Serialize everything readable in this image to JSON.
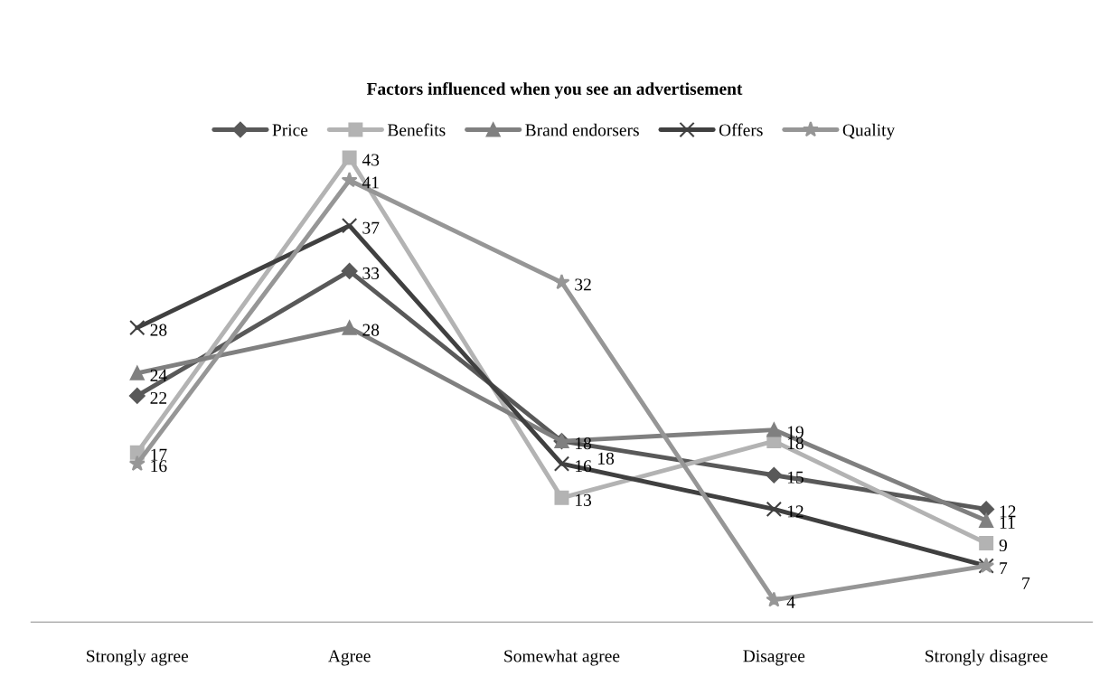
{
  "chart_data": {
    "type": "line",
    "title": "Factors influenced when you see an advertisement",
    "categories": [
      "Strongly agree",
      "Agree",
      "Somewhat agree",
      "Disagree",
      "Strongly disagree"
    ],
    "series": [
      {
        "name": "Price",
        "color": "#595959",
        "marker": "diamond",
        "values": [
          22,
          33,
          18,
          15,
          12
        ]
      },
      {
        "name": "Benefits",
        "color": "#b3b3b3",
        "marker": "square",
        "values": [
          17,
          43,
          13,
          18,
          9
        ]
      },
      {
        "name": "Brand endorsers",
        "color": "#808080",
        "marker": "triangle",
        "values": [
          24,
          28,
          18,
          19,
          11
        ]
      },
      {
        "name": "Offers",
        "color": "#404040",
        "marker": "cross",
        "values": [
          28,
          37,
          16,
          12,
          7
        ]
      },
      {
        "name": "Quality",
        "color": "#969696",
        "marker": "star",
        "values": [
          16,
          41,
          32,
          4,
          7
        ]
      }
    ],
    "tick_labels": "x",
    "data_labels": true,
    "legend": "top",
    "grid": false,
    "line_style": "solid"
  }
}
